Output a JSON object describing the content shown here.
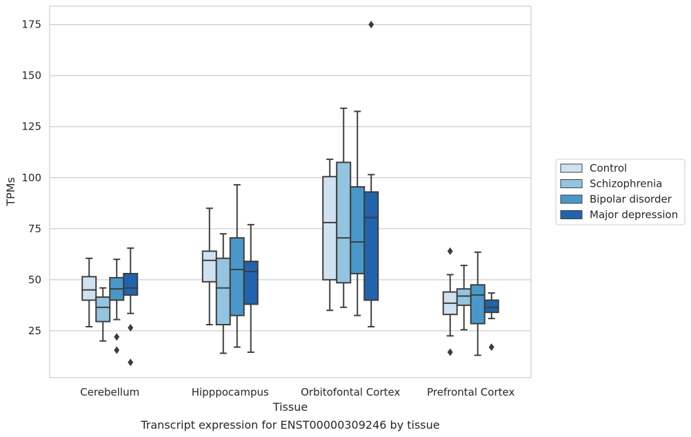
{
  "caption": "Transcript expression for ENST00000309246 by tissue",
  "chart_data": {
    "type": "box",
    "xlabel": "Tissue",
    "ylabel": "TPMs",
    "ylim": [
      2,
      184
    ],
    "yticks": [
      25,
      50,
      75,
      100,
      125,
      150,
      175
    ],
    "grid": true,
    "legend_position": "right",
    "categories": [
      "Cerebellum",
      "Hipppocampus",
      "Orbitofontal Cortex",
      "Prefrontal Cortex"
    ],
    "series": [
      {
        "name": "Control",
        "color": "#d0e1f2",
        "boxes": [
          {
            "whislo": 27,
            "q1": 40,
            "med": 45,
            "q3": 51.5,
            "whishi": 60.5,
            "fliers": []
          },
          {
            "whislo": 28,
            "q1": 49,
            "med": 59.5,
            "q3": 64,
            "whishi": 85,
            "fliers": []
          },
          {
            "whislo": 35,
            "q1": 50,
            "med": 78,
            "q3": 100.5,
            "whishi": 109,
            "fliers": []
          },
          {
            "whislo": 22.5,
            "q1": 33,
            "med": 38.5,
            "q3": 44,
            "whishi": 52.5,
            "fliers": [
              14.5,
              64
            ]
          }
        ]
      },
      {
        "name": "Schizophrenia",
        "color": "#94c4df",
        "boxes": [
          {
            "whislo": 20,
            "q1": 29.5,
            "med": 36.5,
            "q3": 41.5,
            "whishi": 46,
            "fliers": []
          },
          {
            "whislo": 14,
            "q1": 28,
            "med": 46,
            "q3": 60.5,
            "whishi": 72.5,
            "fliers": []
          },
          {
            "whislo": 36.5,
            "q1": 48.5,
            "med": 70.5,
            "q3": 107.5,
            "whishi": 134,
            "fliers": []
          },
          {
            "whislo": 25.5,
            "q1": 37.5,
            "med": 42,
            "q3": 45.5,
            "whishi": 57,
            "fliers": []
          }
        ]
      },
      {
        "name": "Bipolar disorder",
        "color": "#4a98c9",
        "boxes": [
          {
            "whislo": 30.5,
            "q1": 40,
            "med": 45.5,
            "q3": 51,
            "whishi": 60,
            "fliers": [
              15.5,
              22
            ]
          },
          {
            "whislo": 17,
            "q1": 32.5,
            "med": 55,
            "q3": 70.5,
            "whishi": 96.5,
            "fliers": []
          },
          {
            "whislo": 32.5,
            "q1": 53,
            "med": 68.5,
            "q3": 95.5,
            "whishi": 132.5,
            "fliers": []
          },
          {
            "whislo": 13,
            "q1": 28.5,
            "med": 42.5,
            "q3": 47.5,
            "whishi": 63.5,
            "fliers": []
          }
        ]
      },
      {
        "name": "Major depression",
        "color": "#2164ab",
        "boxes": [
          {
            "whislo": 33.5,
            "q1": 42.5,
            "med": 46,
            "q3": 53,
            "whishi": 65.5,
            "fliers": [
              9.5,
              26.5
            ]
          },
          {
            "whislo": 14.5,
            "q1": 38,
            "med": 54,
            "q3": 59,
            "whishi": 77,
            "fliers": []
          },
          {
            "whislo": 27,
            "q1": 40,
            "med": 80.5,
            "q3": 93,
            "whishi": 101.5,
            "fliers": [
              175
            ]
          },
          {
            "whislo": 31,
            "q1": 34,
            "med": 36.5,
            "q3": 40,
            "whishi": 43.5,
            "fliers": [
              17
            ]
          }
        ]
      }
    ]
  }
}
